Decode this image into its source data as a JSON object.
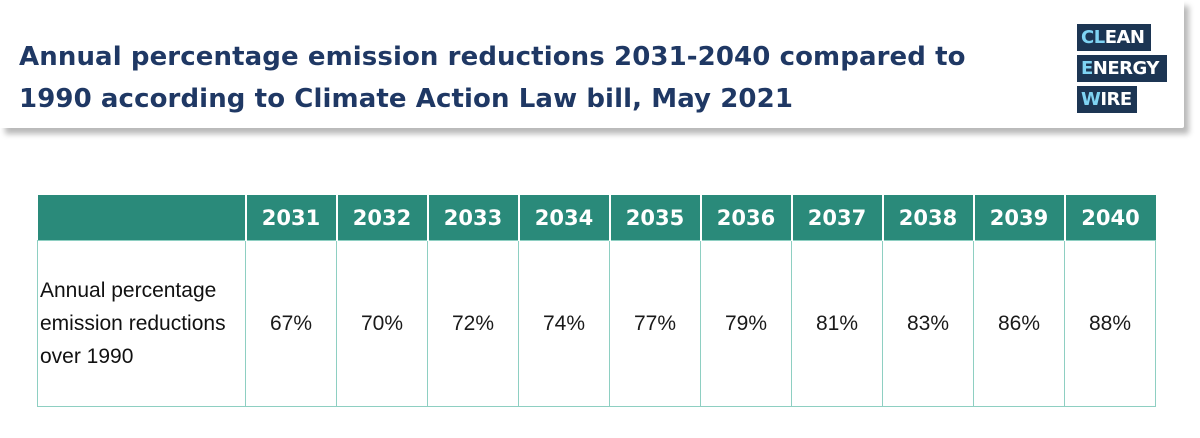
{
  "title": "Annual percentage emission reductions 2031-2040 compared to 1990 according to Climate Action Law bill, May 2021",
  "logo": {
    "line1": {
      "hl": "CL",
      "rest": "EAN"
    },
    "line2": {
      "hl": "E",
      "rest": "NERGY"
    },
    "line3": {
      "hl": "W",
      "rest": "IRE"
    },
    "bg_color": "#1c3553",
    "highlight_color": "#7fd3f3"
  },
  "colors": {
    "header_fill": "#2a8a7a",
    "title_color": "#1f3864",
    "grid_line": "#8ecfc2"
  },
  "chart_data": {
    "type": "table",
    "title": "Annual percentage emission reductions 2031-2040 compared to 1990 according to Climate Action Law bill, May 2021",
    "columns": [
      "2031",
      "2032",
      "2033",
      "2034",
      "2035",
      "2036",
      "2037",
      "2038",
      "2039",
      "2040"
    ],
    "row_label": "Annual percentage emission reductions over 1990",
    "values": [
      "67%",
      "70%",
      "72%",
      "74%",
      "77%",
      "79%",
      "81%",
      "83%",
      "86%",
      "88%"
    ]
  }
}
